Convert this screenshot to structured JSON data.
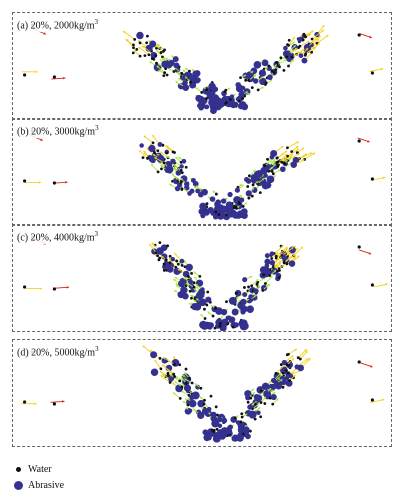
{
  "panels": [
    {
      "letter": "(a)",
      "concentration": "20%,",
      "density": "2000kg/m",
      "exp": "3"
    },
    {
      "letter": "(b)",
      "concentration": "20%,",
      "density": "3000kg/m",
      "exp": "3"
    },
    {
      "letter": "(c)",
      "concentration": "20%,",
      "density": "4000kg/m",
      "exp": "3"
    },
    {
      "letter": "(d)",
      "concentration": "20%,",
      "density": "5000kg/m",
      "exp": "3"
    }
  ],
  "legend": {
    "water": "Water",
    "abrasive": "Abrasive"
  },
  "colors": {
    "water_particle": "#111111",
    "abrasive_particle": "#35318f",
    "velocity_low": "#a8e63c",
    "velocity_mid": "#f2d21a",
    "velocity_high": "#d9231c",
    "frame": "#666666"
  }
}
